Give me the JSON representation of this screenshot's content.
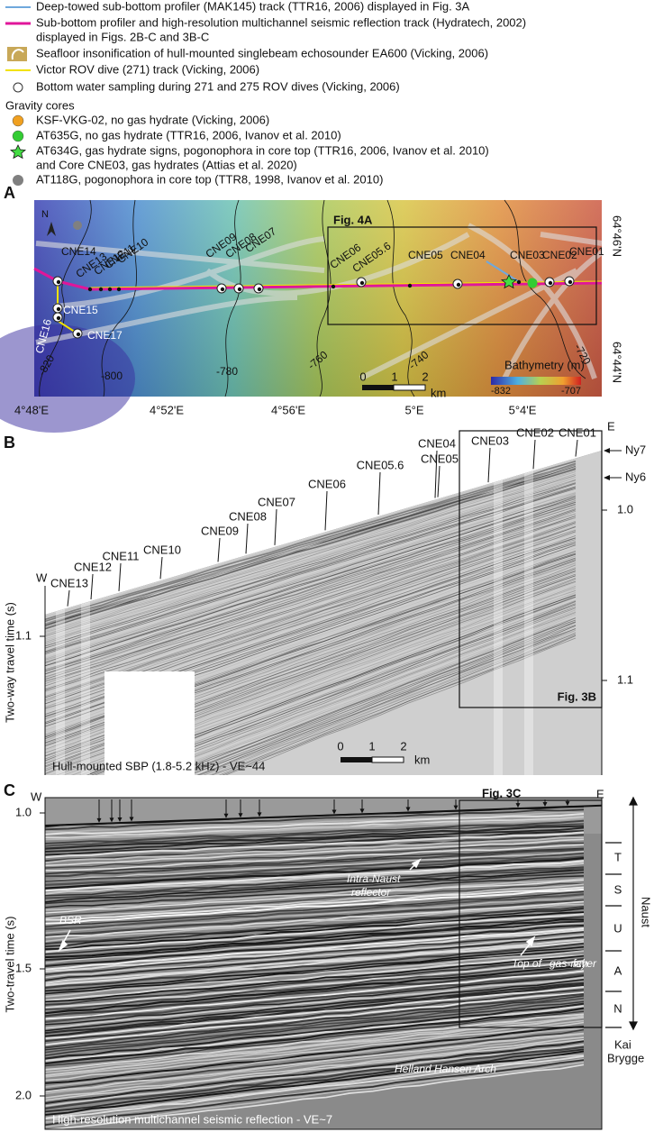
{
  "legend": {
    "lines": [
      "Deep-towed sub-bottom profiler (MAK145) track (TTR16, 2006) displayed in Fig. 3A",
      "Sub-bottom profiler and high-resolution multichannel seismic reflection track (Hydratech, 2002)",
      "displayed in Figs. 2B-C and 3B-C",
      "Seafloor insonification of hull-mounted singlebeam echosounder EA600 (Vicking, 2006)",
      "Victor ROV dive (271) track (Vicking, 2006)",
      "Bottom water sampling during 271 and 275 ROV dives (Vicking, 2006)",
      "Gravity cores",
      "KSF-VKG-02, no gas hydrate (Vicking, 2006)",
      "AT635G, no gas hydrate (TTR16, 2006, Ivanov et al. 2010)",
      "AT634G, gas hydrate signs, pogonophora in core top (TTR16, 2006, Ivanov et al. 2010)",
      "and Core CNE03, gas hydrates (Attias et al. 2020)",
      "AT118G, pogonophora in core top (TTR8, 1998, Ivanov et al. 2010)"
    ]
  },
  "panel_a": {
    "label": "A",
    "fig_box": "Fig. 4A",
    "north": "N",
    "stations": [
      "CNE14",
      "CNE13",
      "CNE12",
      "CNE11",
      "CNE10",
      "CNE09",
      "CNE08",
      "CNE07",
      "CNE06",
      "CNE05.6",
      "CNE05",
      "CNE04",
      "CNE03",
      "CNE02",
      "CNE01",
      "CNE15",
      "CNE16",
      "CNE17"
    ],
    "contours": [
      "-820",
      "-800",
      "-780",
      "-760",
      "-740",
      "-720"
    ],
    "scale": [
      "0",
      "1",
      "2",
      "km"
    ],
    "bathymetry_title": "Bathymetry (m)",
    "bathymetry_range": [
      "-832",
      "-707"
    ],
    "longitudes": [
      "4°48'E",
      "4°52'E",
      "4°56'E",
      "5°E",
      "5°4'E"
    ],
    "latitudes": [
      "64°46'N",
      "64°44'N"
    ]
  },
  "panel_b": {
    "label": "B",
    "west": "W",
    "east": "E",
    "stations": [
      "CNE13",
      "CNE12",
      "CNE11",
      "CNE10",
      "CNE09",
      "CNE08",
      "CNE07",
      "CNE06",
      "CNE05.6",
      "CNE05",
      "CNE04",
      "CNE03",
      "CNE02",
      "CNE01"
    ],
    "horizons": [
      "Ny7",
      "Ny6"
    ],
    "ticks_left": [
      "1.1"
    ],
    "ticks_right": [
      "1.0",
      "1.1"
    ],
    "y_label": "Two-way travel time (s)",
    "fig_box": "Fig. 3B",
    "scale": [
      "0",
      "1",
      "2",
      "km"
    ],
    "caption": "Hull-mounted SBP (1.8-5.2 kHz) - VE~44"
  },
  "panel_c": {
    "label": "C",
    "west": "W",
    "east": "E",
    "fig_box": "Fig. 3C",
    "ticks": [
      "1.0",
      "1.5",
      "2.0"
    ],
    "y_label": "Two-travel time (s)",
    "annotations": [
      "BSR",
      "Intra-Naust",
      "reflector",
      "Top of",
      "gas-rich",
      "layer",
      "Helland Hansen Arch"
    ],
    "units": [
      "T",
      "S",
      "U",
      "A",
      "N"
    ],
    "unit_group": "Naust",
    "base": [
      "Kai",
      "Brygge"
    ],
    "caption": "High-resolution multichannel seismic reflection - VE~7"
  }
}
